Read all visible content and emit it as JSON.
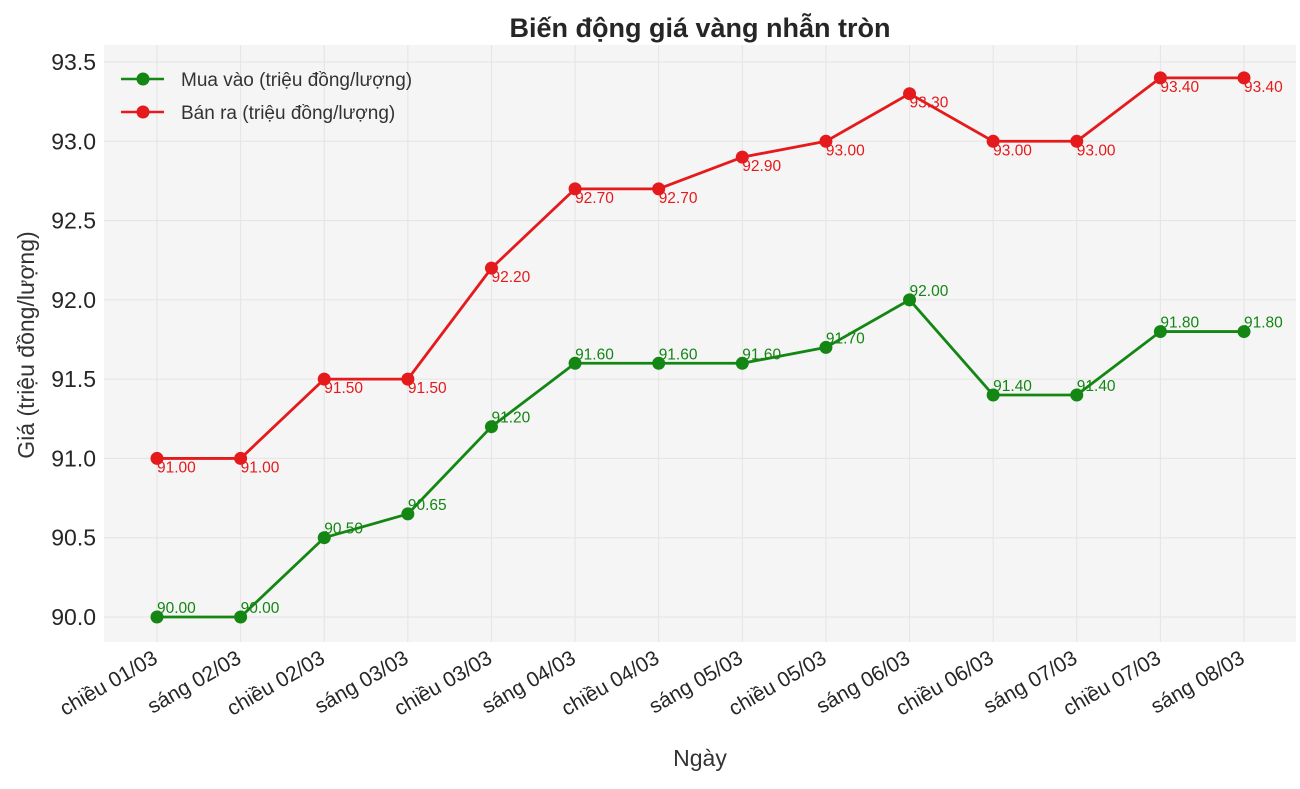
{
  "chart_data": {
    "type": "line",
    "title": "Biến động giá vàng nhẫn tròn",
    "xlabel": "Ngày",
    "ylabel": "Giá (triệu đồng/lượng)",
    "ylim": [
      89.85,
      93.6
    ],
    "yticks": [
      "90.0",
      "90.5",
      "91.0",
      "91.5",
      "92.0",
      "92.5",
      "93.0",
      "93.5"
    ],
    "ytick_values": [
      90.0,
      90.5,
      91.0,
      91.5,
      92.0,
      92.5,
      93.0,
      93.5
    ],
    "grid": true,
    "legend_position": "top-left",
    "categories": [
      "chiều 01/03",
      "sáng 02/03",
      "chiều 02/03",
      "sáng 03/03",
      "chiều 03/03",
      "sáng 04/03",
      "chiều 04/03",
      "sáng 05/03",
      "chiều 05/03",
      "sáng 06/03",
      "chiều 06/03",
      "sáng 07/03",
      "chiều 07/03",
      "sáng 08/03"
    ],
    "series": [
      {
        "name": "Mua vào (triệu đồng/lượng)",
        "color": "#138613",
        "values": [
          90.0,
          90.0,
          90.5,
          90.65,
          91.2,
          91.6,
          91.6,
          91.6,
          91.7,
          92.0,
          91.4,
          91.4,
          91.8,
          91.8
        ],
        "labels": [
          "90.00",
          "90.00",
          "90.50",
          "90.65",
          "91.20",
          "91.60",
          "91.60",
          "91.60",
          "91.70",
          "92.00",
          "91.40",
          "91.40",
          "91.80",
          "91.80"
        ],
        "label_position": "above"
      },
      {
        "name": "Bán ra (triệu đồng/lượng)",
        "color": "#e41a1c",
        "values": [
          91.0,
          91.0,
          91.5,
          91.5,
          92.2,
          92.7,
          92.7,
          92.9,
          93.0,
          93.3,
          93.0,
          93.0,
          93.4,
          93.4
        ],
        "labels": [
          "91.00",
          "91.00",
          "91.50",
          "91.50",
          "92.20",
          "92.70",
          "92.70",
          "92.90",
          "93.00",
          "93.30",
          "93.00",
          "93.00",
          "93.40",
          "93.40"
        ],
        "label_position": "below"
      }
    ]
  }
}
